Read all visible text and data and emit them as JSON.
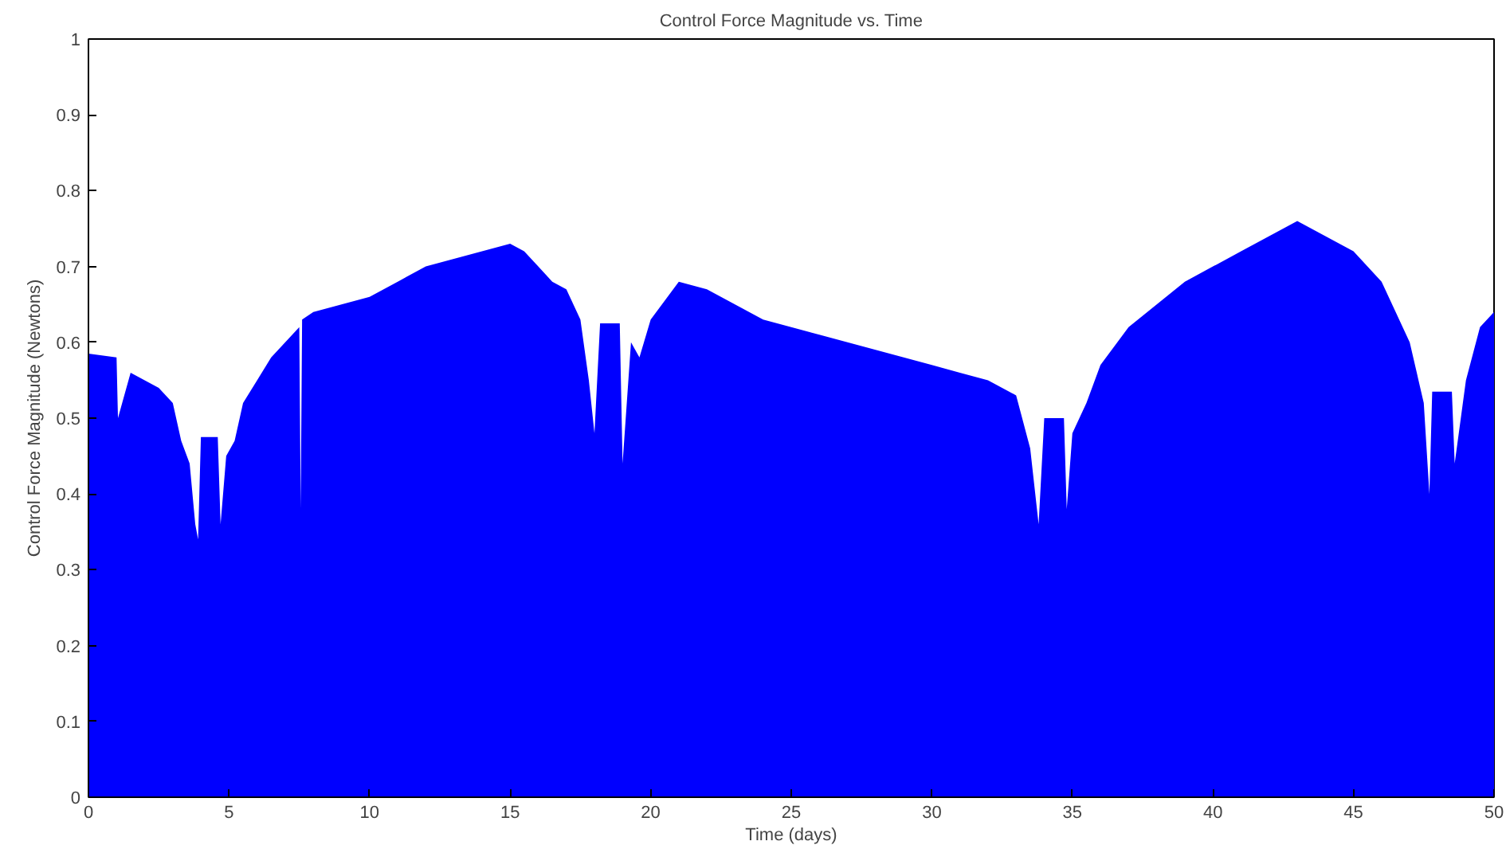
{
  "chart_data": {
    "type": "area",
    "title": "Control Force Magnitude vs. Time",
    "xlabel": "Time (days)",
    "ylabel": "Control Force Magnitude (Newtons)",
    "xlim": [
      0,
      50
    ],
    "ylim": [
      0,
      1
    ],
    "xticks": [
      0,
      5,
      10,
      15,
      20,
      25,
      30,
      35,
      40,
      45,
      50
    ],
    "yticks": [
      0,
      0.1,
      0.2,
      0.3,
      0.4,
      0.5,
      0.6,
      0.7,
      0.8,
      0.9,
      1
    ],
    "grid": false,
    "series": [
      {
        "color": "#0000ff",
        "x": [
          0,
          1,
          1.05,
          1.5,
          2,
          2.5,
          3,
          3.3,
          3.6,
          3.8,
          3.9,
          4.0,
          4.6,
          4.7,
          4.9,
          5.2,
          5.5,
          6,
          6.5,
          7,
          7.5,
          7.55,
          7.6,
          8,
          9,
          10,
          11,
          12,
          13,
          14,
          15,
          15.5,
          16,
          16.5,
          17,
          17.5,
          17.8,
          18.0,
          18.2,
          18.9,
          19.0,
          19.3,
          19.6,
          20,
          21,
          22,
          23,
          24,
          25,
          26,
          27,
          28,
          29,
          30,
          31,
          32,
          33,
          33.5,
          33.8,
          34.0,
          34.7,
          34.8,
          35,
          35.5,
          36,
          37,
          38,
          39,
          40,
          41,
          42,
          43,
          44,
          45,
          46,
          46.5,
          47,
          47.5,
          47.7,
          47.8,
          48.5,
          48.6,
          49,
          49.5,
          50
        ],
        "values": [
          0.585,
          0.58,
          0.5,
          0.56,
          0.55,
          0.54,
          0.52,
          0.47,
          0.44,
          0.36,
          0.34,
          0.475,
          0.475,
          0.36,
          0.45,
          0.47,
          0.52,
          0.55,
          0.58,
          0.6,
          0.62,
          0.38,
          0.63,
          0.64,
          0.65,
          0.66,
          0.68,
          0.7,
          0.71,
          0.72,
          0.73,
          0.72,
          0.7,
          0.68,
          0.67,
          0.63,
          0.55,
          0.48,
          0.625,
          0.625,
          0.44,
          0.6,
          0.58,
          0.63,
          0.68,
          0.67,
          0.65,
          0.63,
          0.62,
          0.61,
          0.6,
          0.59,
          0.58,
          0.57,
          0.56,
          0.55,
          0.53,
          0.46,
          0.36,
          0.5,
          0.5,
          0.38,
          0.48,
          0.52,
          0.57,
          0.62,
          0.65,
          0.68,
          0.7,
          0.72,
          0.74,
          0.76,
          0.74,
          0.72,
          0.68,
          0.64,
          0.6,
          0.52,
          0.4,
          0.535,
          0.535,
          0.44,
          0.55,
          0.62,
          0.64
        ]
      }
    ]
  }
}
